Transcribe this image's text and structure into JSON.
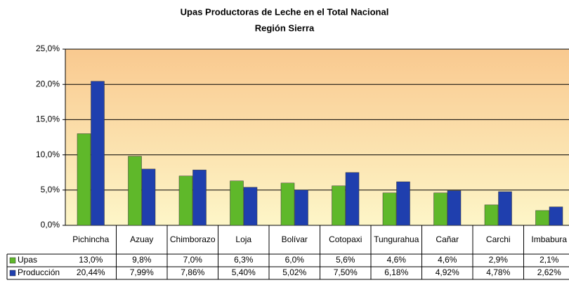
{
  "chart_data": {
    "type": "bar",
    "title": "Upas Productoras de Leche en el Total Nacional",
    "subtitle": "Región Sierra",
    "categories": [
      "Pichincha",
      "Azuay",
      "Chimborazo",
      "Loja",
      "Bolívar",
      "Cotopaxi",
      "Tungurahua",
      "Cañar",
      "Carchi",
      "Imbabura"
    ],
    "series": [
      {
        "name": "Upas",
        "color": "#5fb82a",
        "values": [
          13.0,
          9.8,
          7.0,
          6.3,
          6.0,
          5.6,
          4.6,
          4.6,
          2.9,
          2.1
        ],
        "value_labels": [
          "13,0%",
          "9,8%",
          "7,0%",
          "6,3%",
          "6,0%",
          "5,6%",
          "4,6%",
          "4,6%",
          "2,9%",
          "2,1%"
        ]
      },
      {
        "name": "Producción",
        "color": "#1f3fae",
        "values": [
          20.44,
          7.99,
          7.86,
          5.4,
          5.02,
          7.5,
          6.18,
          4.92,
          4.78,
          2.62
        ],
        "value_labels": [
          "20,44%",
          "7,99%",
          "7,86%",
          "5,40%",
          "5,02%",
          "7,50%",
          "6,18%",
          "4,92%",
          "4,78%",
          "2,62%"
        ]
      }
    ],
    "ylim": [
      0,
      25
    ],
    "yticks": [
      {
        "value": 0,
        "label": "0,0%"
      },
      {
        "value": 5,
        "label": "5,0%"
      },
      {
        "value": 10,
        "label": "10,0%"
      },
      {
        "value": 15,
        "label": "15,0%"
      },
      {
        "value": 20,
        "label": "20,0%"
      },
      {
        "value": 25,
        "label": "25,0%"
      }
    ],
    "grid": true
  }
}
